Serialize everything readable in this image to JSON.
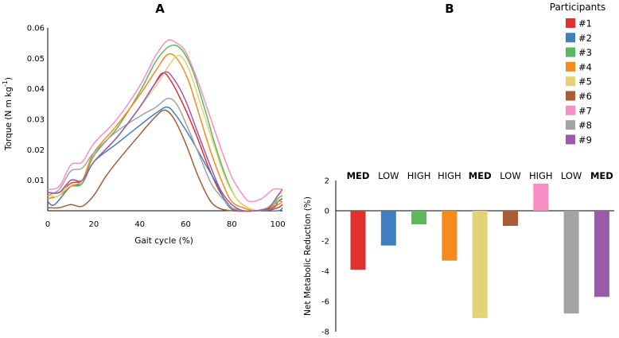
{
  "panel_a_label": "A",
  "panel_b_label": "B",
  "colors": {
    "#1": "#e0312f",
    "#2": "#3f7fbf",
    "#3": "#5cb85c",
    "#4": "#f58a1f",
    "#5": "#e3d27a",
    "#6": "#a95c35",
    "#7": "#f58fc5",
    "#8": "#a3a3a3",
    "#9": "#9a5ba8"
  },
  "legend": {
    "title": "Participants",
    "entries": [
      "#1",
      "#2",
      "#3",
      "#4",
      "#5",
      "#6",
      "#7",
      "#8",
      "#9"
    ]
  },
  "chart_data": [
    {
      "type": "line",
      "panel": "A",
      "title": "",
      "xlabel": "Gait cycle (%)",
      "ylabel": "Torque (N m kg",
      "ylabel_sup": "-1",
      "ylabel_end": ")",
      "xlim": [
        0,
        102
      ],
      "ylim": [
        0,
        0.06
      ],
      "xticks": [
        "0",
        "20",
        "40",
        "60",
        "80",
        "100"
      ],
      "xtick_values": [
        0,
        20,
        40,
        60,
        80,
        100
      ],
      "yticks": [
        "0.01",
        "0.02",
        "0.03",
        "0.04",
        "0.05",
        "0.06"
      ],
      "ytick_values": [
        0.01,
        0.02,
        0.03,
        0.04,
        0.05,
        0.06
      ],
      "series": [
        {
          "name": "#1",
          "points": [
            [
              0,
              0.006
            ],
            [
              5,
              0.006
            ],
            [
              10,
              0.009
            ],
            [
              15,
              0.01
            ],
            [
              20,
              0.016
            ],
            [
              30,
              0.024
            ],
            [
              40,
              0.034
            ],
            [
              46,
              0.041
            ],
            [
              50,
              0.0452
            ],
            [
              54,
              0.042
            ],
            [
              60,
              0.033
            ],
            [
              65,
              0.024
            ],
            [
              70,
              0.014
            ],
            [
              75,
              0.006
            ],
            [
              80,
              0.001
            ],
            [
              85,
              0.0
            ],
            [
              90,
              0.0
            ],
            [
              95,
              0.0
            ],
            [
              100,
              0.001
            ],
            [
              102,
              0.002
            ]
          ]
        },
        {
          "name": "#2",
          "points": [
            [
              0,
              0.003
            ],
            [
              3,
              0.002
            ],
            [
              10,
              0.008
            ],
            [
              15,
              0.009
            ],
            [
              20,
              0.016
            ],
            [
              30,
              0.022
            ],
            [
              40,
              0.028
            ],
            [
              47,
              0.032
            ],
            [
              52,
              0.034
            ],
            [
              56,
              0.031
            ],
            [
              62,
              0.024
            ],
            [
              68,
              0.016
            ],
            [
              74,
              0.008
            ],
            [
              78,
              0.002
            ],
            [
              82,
              0.0
            ],
            [
              90,
              0.0
            ],
            [
              100,
              0.0
            ],
            [
              102,
              0.001
            ]
          ]
        },
        {
          "name": "#3",
          "points": [
            [
              0,
              0.004
            ],
            [
              5,
              0.005
            ],
            [
              10,
              0.008
            ],
            [
              15,
              0.009
            ],
            [
              20,
              0.018
            ],
            [
              30,
              0.027
            ],
            [
              40,
              0.039
            ],
            [
              47,
              0.049
            ],
            [
              53,
              0.054
            ],
            [
              58,
              0.053
            ],
            [
              63,
              0.046
            ],
            [
              68,
              0.034
            ],
            [
              73,
              0.021
            ],
            [
              78,
              0.01
            ],
            [
              82,
              0.004
            ],
            [
              87,
              0.001
            ],
            [
              92,
              0.0
            ],
            [
              97,
              0.001
            ],
            [
              100,
              0.004
            ],
            [
              102,
              0.005
            ]
          ]
        },
        {
          "name": "#4",
          "points": [
            [
              0,
              0.004
            ],
            [
              5,
              0.005
            ],
            [
              10,
              0.008
            ],
            [
              15,
              0.01
            ],
            [
              20,
              0.019
            ],
            [
              30,
              0.028
            ],
            [
              40,
              0.038
            ],
            [
              47,
              0.046
            ],
            [
              52,
              0.0512
            ],
            [
              56,
              0.05
            ],
            [
              61,
              0.043
            ],
            [
              66,
              0.031
            ],
            [
              71,
              0.019
            ],
            [
              76,
              0.009
            ],
            [
              80,
              0.003
            ],
            [
              85,
              0.001
            ],
            [
              90,
              0.0
            ],
            [
              96,
              0.001
            ],
            [
              100,
              0.002
            ],
            [
              102,
              0.003
            ]
          ]
        },
        {
          "name": "#5",
          "points": [
            [
              0,
              0.005
            ],
            [
              5,
              0.005
            ],
            [
              10,
              0.01
            ],
            [
              15,
              0.01
            ],
            [
              20,
              0.016
            ],
            [
              30,
              0.024
            ],
            [
              40,
              0.034
            ],
            [
              48,
              0.042
            ],
            [
              53,
              0.048
            ],
            [
              57,
              0.051
            ],
            [
              61,
              0.047
            ],
            [
              66,
              0.036
            ],
            [
              72,
              0.022
            ],
            [
              77,
              0.011
            ],
            [
              82,
              0.004
            ],
            [
              87,
              0.001
            ],
            [
              92,
              0.0
            ],
            [
              97,
              0.002
            ],
            [
              100,
              0.005
            ],
            [
              102,
              0.006
            ]
          ]
        },
        {
          "name": "#6",
          "points": [
            [
              0,
              0.001
            ],
            [
              5,
              0.001
            ],
            [
              10,
              0.002
            ],
            [
              15,
              0.0015
            ],
            [
              20,
              0.005
            ],
            [
              25,
              0.011
            ],
            [
              30,
              0.016
            ],
            [
              40,
              0.025
            ],
            [
              47,
              0.031
            ],
            [
              51,
              0.033
            ],
            [
              55,
              0.03
            ],
            [
              60,
              0.022
            ],
            [
              65,
              0.012
            ],
            [
              70,
              0.004
            ],
            [
              74,
              0.001
            ],
            [
              80,
              0.0
            ],
            [
              90,
              0.0
            ],
            [
              98,
              0.001
            ],
            [
              100,
              0.003
            ],
            [
              102,
              0.004
            ]
          ]
        },
        {
          "name": "#7",
          "points": [
            [
              0,
              0.007
            ],
            [
              5,
              0.008
            ],
            [
              10,
              0.015
            ],
            [
              15,
              0.016
            ],
            [
              20,
              0.022
            ],
            [
              30,
              0.03
            ],
            [
              40,
              0.041
            ],
            [
              47,
              0.051
            ],
            [
              52,
              0.0558
            ],
            [
              56,
              0.055
            ],
            [
              60,
              0.052
            ],
            [
              65,
              0.043
            ],
            [
              70,
              0.032
            ],
            [
              75,
              0.021
            ],
            [
              80,
              0.011
            ],
            [
              85,
              0.005
            ],
            [
              88,
              0.003
            ],
            [
              93,
              0.004
            ],
            [
              98,
              0.007
            ],
            [
              102,
              0.007
            ]
          ]
        },
        {
          "name": "#8",
          "points": [
            [
              0,
              0.005
            ],
            [
              5,
              0.007
            ],
            [
              10,
              0.013
            ],
            [
              15,
              0.014
            ],
            [
              20,
              0.019
            ],
            [
              30,
              0.026
            ],
            [
              40,
              0.031
            ],
            [
              47,
              0.034
            ],
            [
              52,
              0.0368
            ],
            [
              56,
              0.035
            ],
            [
              61,
              0.027
            ],
            [
              66,
              0.018
            ],
            [
              71,
              0.009
            ],
            [
              76,
              0.004
            ],
            [
              80,
              0.001
            ],
            [
              85,
              0.0
            ],
            [
              90,
              0.0
            ],
            [
              96,
              0.001
            ],
            [
              100,
              0.003
            ],
            [
              102,
              0.003
            ]
          ]
        },
        {
          "name": "#9",
          "points": [
            [
              0,
              0.006
            ],
            [
              5,
              0.006
            ],
            [
              10,
              0.01
            ],
            [
              15,
              0.01
            ],
            [
              20,
              0.016
            ],
            [
              30,
              0.024
            ],
            [
              40,
              0.034
            ],
            [
              46,
              0.041
            ],
            [
              51,
              0.0455
            ],
            [
              55,
              0.043
            ],
            [
              60,
              0.036
            ],
            [
              65,
              0.026
            ],
            [
              70,
              0.016
            ],
            [
              75,
              0.007
            ],
            [
              80,
              0.002
            ],
            [
              85,
              0.0
            ],
            [
              90,
              0.0
            ],
            [
              96,
              0.001
            ],
            [
              100,
              0.005
            ],
            [
              102,
              0.007
            ]
          ]
        }
      ]
    },
    {
      "type": "bar",
      "panel": "B",
      "title": "",
      "xlabel": "",
      "ylabel": "Net Metabolic Reduction (%)",
      "ylim": [
        -8,
        2
      ],
      "yticks": [
        "2",
        "0",
        "-2",
        "-4",
        "-6",
        "-8"
      ],
      "ytick_values": [
        2,
        0,
        -2,
        -4,
        -6,
        -8
      ],
      "categories": [
        "#1",
        "#2",
        "#3",
        "#4",
        "#5",
        "#6",
        "#7",
        "#8",
        "#9"
      ],
      "conditions": [
        "MED",
        "LOW",
        "HIGH",
        "HIGH",
        "MED",
        "LOW",
        "HIGH",
        "LOW",
        "MED"
      ],
      "values": [
        -3.9,
        -2.3,
        -0.9,
        -3.3,
        -7.1,
        -1.0,
        1.8,
        -6.8,
        -5.7
      ]
    }
  ]
}
